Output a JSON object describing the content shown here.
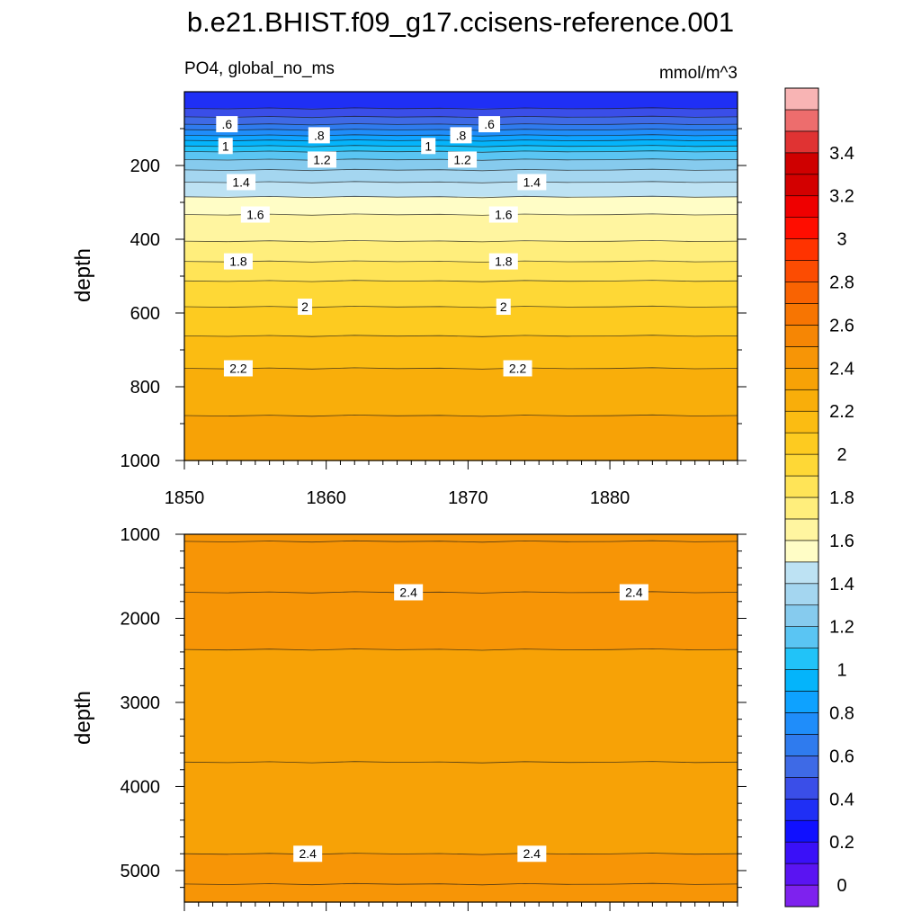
{
  "chart_data": {
    "type": "contour",
    "title": "b.e21.BHIST.f09_g17.ccisens-reference.001",
    "subtitle_left": "PO4, global_no_ms",
    "subtitle_right": "mmol/m^3",
    "ylabel": "depth",
    "x_range": [
      1850,
      1889
    ],
    "x_ticks": [
      "1860",
      "1870",
      "1880"
    ],
    "panels": [
      {
        "name": "upper",
        "ylim": [
          0,
          1000
        ],
        "y_ticks": [
          "200",
          "400",
          "600",
          "800",
          "1000"
        ],
        "show_x_tick_labels": true,
        "level_depths": [
          {
            "value": 0.4,
            "depth": 45
          },
          {
            "value": 0.5,
            "depth": 68
          },
          {
            "value": 0.6,
            "depth": 88
          },
          {
            "value": 0.7,
            "depth": 103
          },
          {
            "value": 0.8,
            "depth": 118
          },
          {
            "value": 0.9,
            "depth": 132
          },
          {
            "value": 1.0,
            "depth": 147
          },
          {
            "value": 1.1,
            "depth": 162
          },
          {
            "value": 1.2,
            "depth": 184
          },
          {
            "value": 1.3,
            "depth": 212
          },
          {
            "value": 1.4,
            "depth": 245
          },
          {
            "value": 1.5,
            "depth": 285
          },
          {
            "value": 1.6,
            "depth": 333
          },
          {
            "value": 1.7,
            "depth": 405
          },
          {
            "value": 1.8,
            "depth": 460
          },
          {
            "value": 1.9,
            "depth": 513
          },
          {
            "value": 2.0,
            "depth": 583
          },
          {
            "value": 2.1,
            "depth": 662
          },
          {
            "value": 2.2,
            "depth": 750
          },
          {
            "value": 2.3,
            "depth": 878
          }
        ],
        "contour_labels": [
          {
            "text": ".6",
            "x": 1853.0,
            "depth": 88
          },
          {
            "text": ".6",
            "x": 1871.5,
            "depth": 88
          },
          {
            "text": ".8",
            "x": 1859.5,
            "depth": 118
          },
          {
            "text": ".8",
            "x": 1869.5,
            "depth": 118
          },
          {
            "text": "1",
            "x": 1852.9,
            "depth": 147
          },
          {
            "text": "1",
            "x": 1867.2,
            "depth": 147
          },
          {
            "text": "1.2",
            "x": 1859.7,
            "depth": 184
          },
          {
            "text": "1.2",
            "x": 1869.6,
            "depth": 184
          },
          {
            "text": "1.4",
            "x": 1854.0,
            "depth": 245
          },
          {
            "text": "1.4",
            "x": 1874.5,
            "depth": 245
          },
          {
            "text": "1.6",
            "x": 1855.0,
            "depth": 333
          },
          {
            "text": "1.6",
            "x": 1872.5,
            "depth": 333
          },
          {
            "text": "1.8",
            "x": 1853.8,
            "depth": 460
          },
          {
            "text": "1.8",
            "x": 1872.5,
            "depth": 460
          },
          {
            "text": "2",
            "x": 1858.5,
            "depth": 583
          },
          {
            "text": "2",
            "x": 1872.5,
            "depth": 583
          },
          {
            "text": "2.2",
            "x": 1853.8,
            "depth": 750
          },
          {
            "text": "2.2",
            "x": 1873.5,
            "depth": 750
          }
        ]
      },
      {
        "name": "lower",
        "ylim": [
          1000,
          5375
        ],
        "y_ticks": [
          "1000",
          "2000",
          "3000",
          "4000",
          "5000"
        ],
        "show_x_tick_labels": false,
        "bands": [
          {
            "top": 1000,
            "bottom": 2370,
            "value": 2.45
          },
          {
            "top": 2370,
            "bottom": 3710,
            "value": 2.35
          },
          {
            "top": 3710,
            "bottom": 4800,
            "value": 2.38
          },
          {
            "top": 4800,
            "bottom": 5375,
            "value": 2.45
          }
        ],
        "contour_depths": [
          1085,
          1690,
          2370,
          3710,
          4800,
          5160
        ],
        "contour_labels": [
          {
            "text": "2.4",
            "x": 1865.8,
            "depth": 1690
          },
          {
            "text": "2.4",
            "x": 1881.7,
            "depth": 1690
          },
          {
            "text": "2.4",
            "x": 1858.7,
            "depth": 4800
          },
          {
            "text": "2.4",
            "x": 1874.5,
            "depth": 4800
          }
        ]
      }
    ],
    "colorbar": {
      "labels": [
        "0",
        "0.2",
        "0.4",
        "0.6",
        "0.8",
        "1",
        "1.2",
        "1.4",
        "1.6",
        "1.8",
        "2",
        "2.2",
        "2.4",
        "2.6",
        "2.8",
        "3",
        "3.2",
        "3.4"
      ],
      "level_step": 0.1,
      "colors": [
        "#7e22ee",
        "#5a14f2",
        "#3a10f8",
        "#1010ff",
        "#1f2ff5",
        "#3a4ee8",
        "#3e6ae6",
        "#2f7bee",
        "#1f8dfa",
        "#0ea2ff",
        "#04b4fb",
        "#21c3f8",
        "#5ac5f3",
        "#86cbee",
        "#a4d6f0",
        "#bde2f3",
        "#fffdc6",
        "#fff5a0",
        "#ffee7c",
        "#ffe457",
        "#fed836",
        "#fdcb20",
        "#fbbc12",
        "#f9ae0a",
        "#f7a206",
        "#f79506",
        "#f68604",
        "#f77502",
        "#f96302",
        "#fc4c02",
        "#ff3300",
        "#ff0d00",
        "#ef0000",
        "#d30000",
        "#cf0000",
        "#e03333",
        "#ed6d6d",
        "#f8b4b4"
      ]
    }
  }
}
